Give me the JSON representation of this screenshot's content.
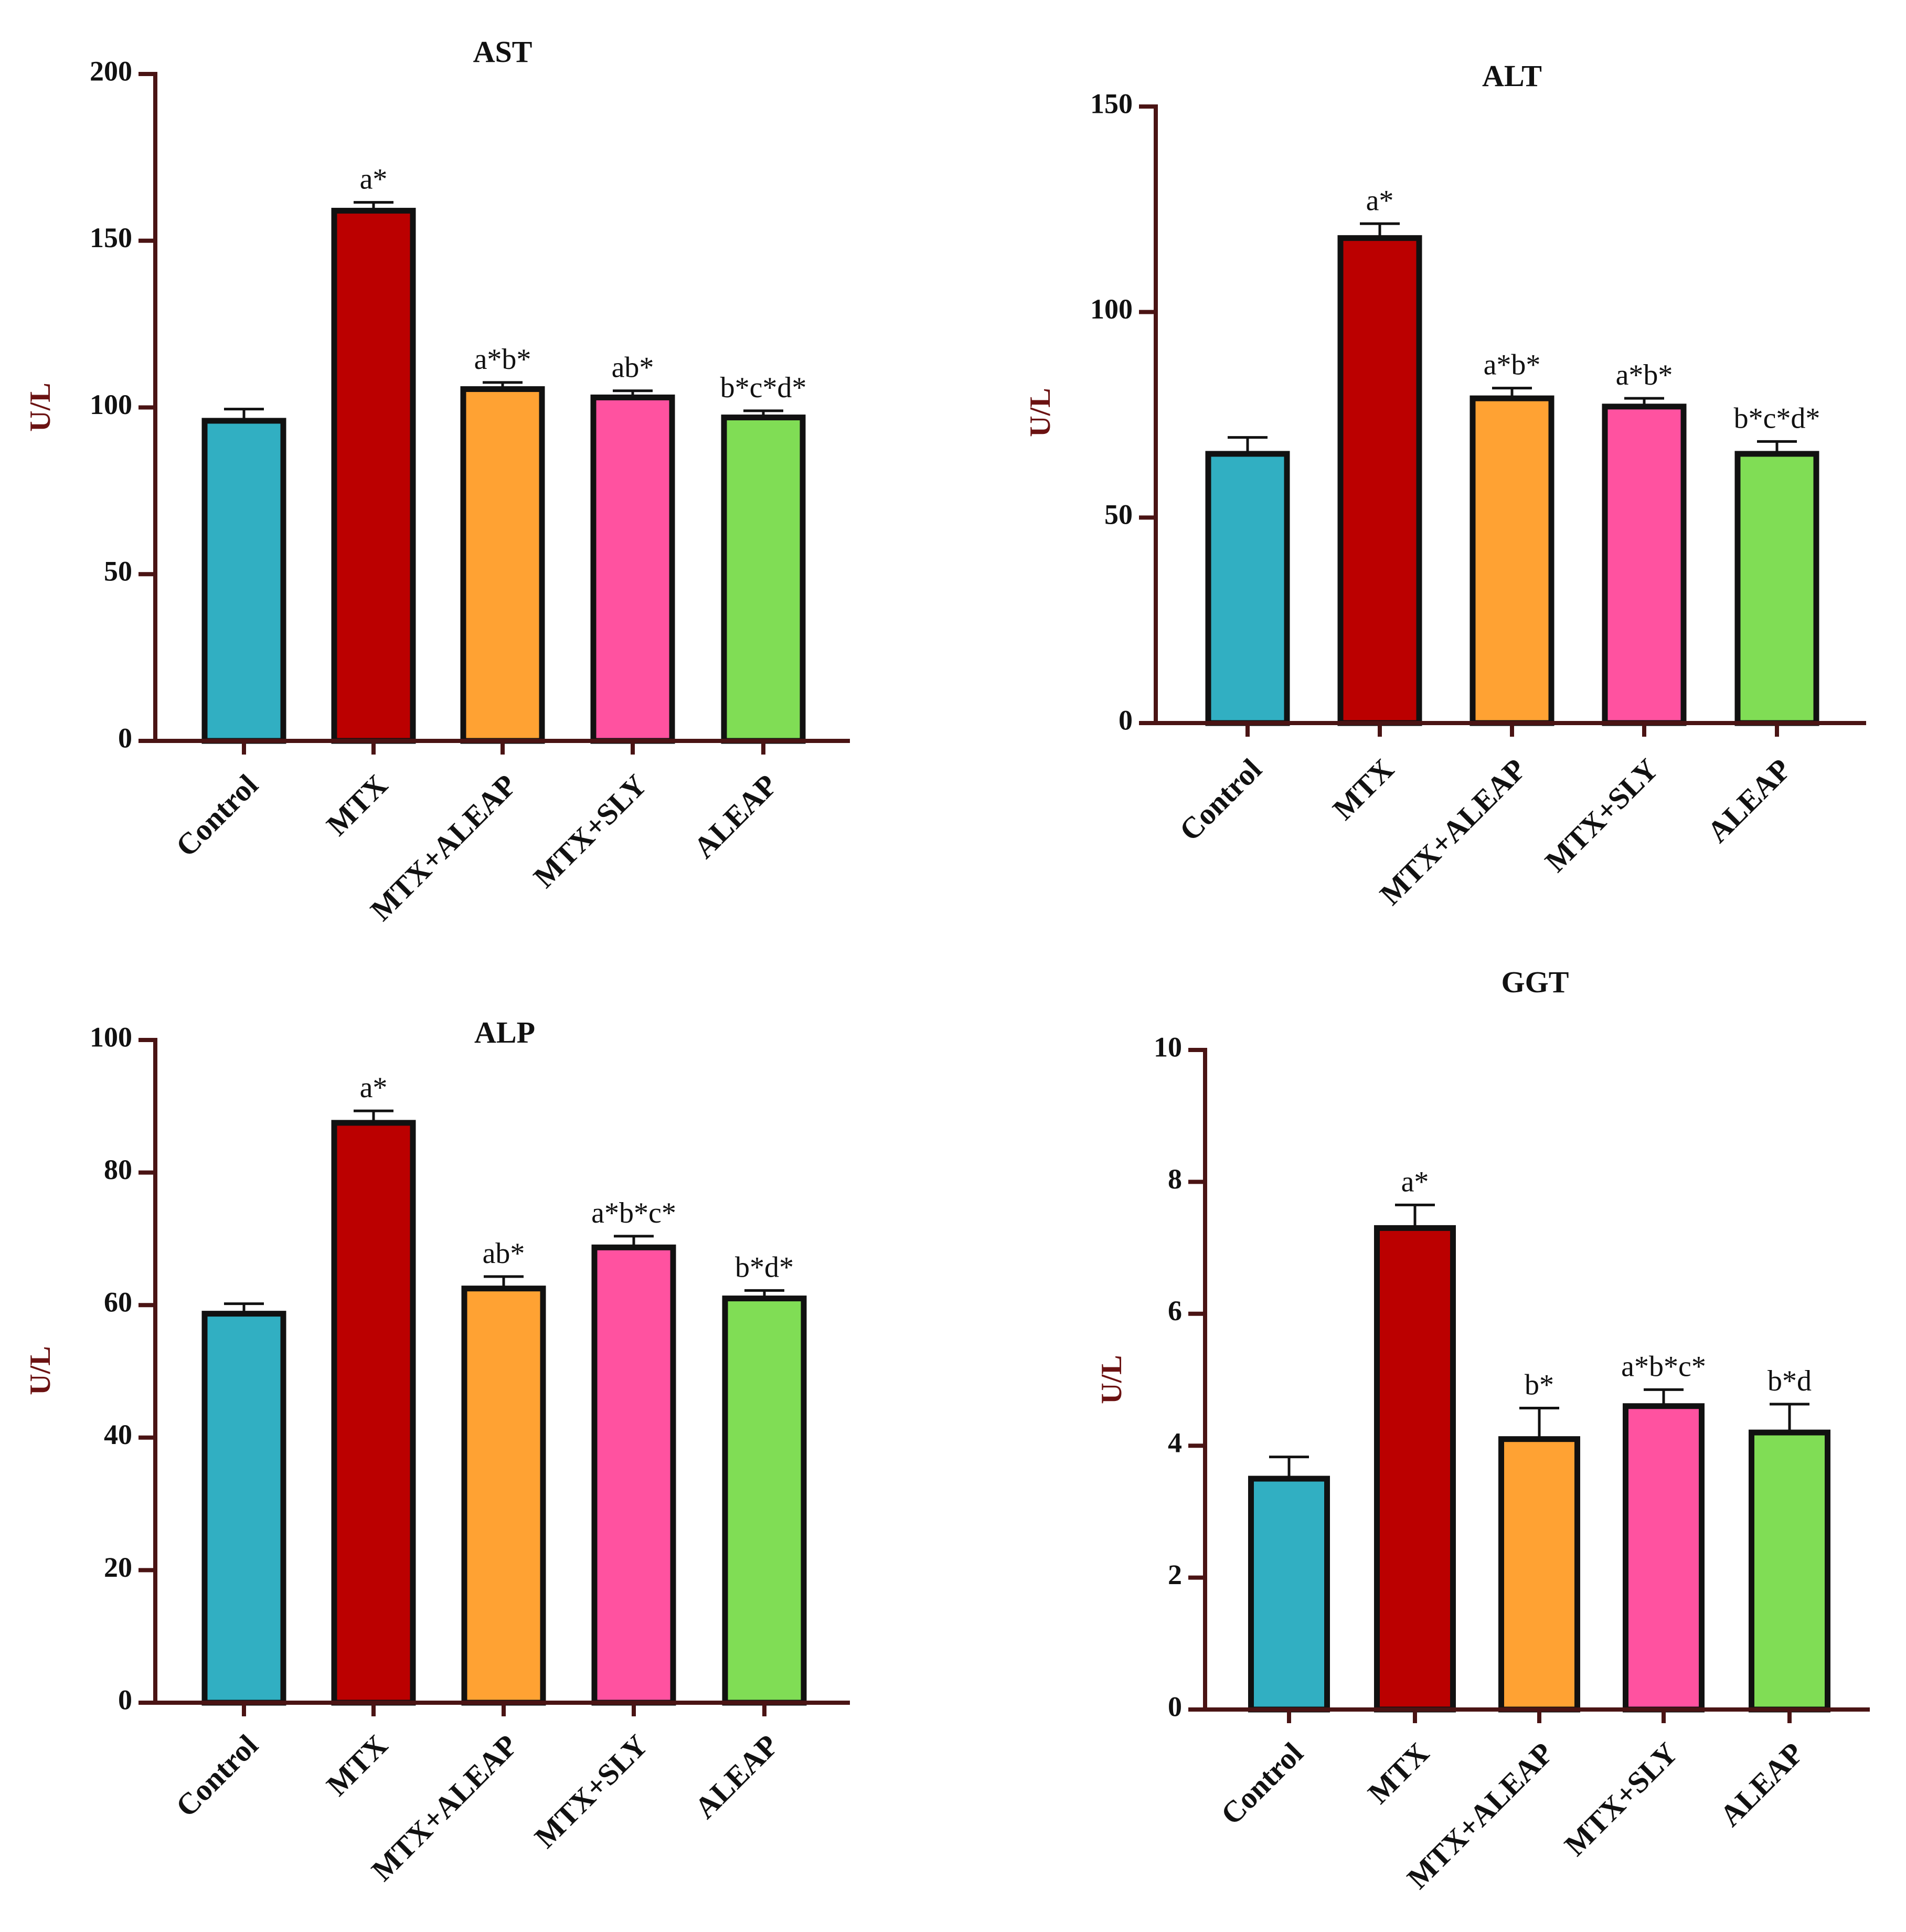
{
  "chart_data": [
    {
      "type": "bar",
      "title": "AST",
      "ylabel": "U/L",
      "xlabel": "",
      "ylim": [
        0,
        200
      ],
      "yticks": [
        0,
        50,
        100,
        150,
        200
      ],
      "categories": [
        "Control",
        "MTX",
        "MTX+ALEAP",
        "MTX+SLY",
        "ALEAP"
      ],
      "values": [
        96,
        159,
        105.5,
        103,
        97
      ],
      "errors": [
        3.5,
        2.5,
        2,
        2,
        2
      ],
      "annotations": [
        "",
        "a*",
        "a*b*",
        "ab*",
        "b*c*d*"
      ],
      "colors": [
        "#31afc2",
        "#bb0000",
        "#ffa233",
        "#ff52a0",
        "#80dd55"
      ]
    },
    {
      "type": "bar",
      "title": "ALT",
      "ylabel": "U/L",
      "xlabel": "",
      "ylim": [
        0,
        150
      ],
      "yticks": [
        0,
        50,
        100,
        150
      ],
      "categories": [
        "Control",
        "MTX",
        "MTX+ALEAP",
        "MTX+SLY",
        "ALEAP"
      ],
      "values": [
        65.5,
        118,
        79,
        77,
        65.5
      ],
      "errors": [
        4,
        3.5,
        2.5,
        2,
        3
      ],
      "annotations": [
        "",
        "a*",
        "a*b*",
        "a*b*",
        "b*c*d*"
      ],
      "colors": [
        "#31afc2",
        "#bb0000",
        "#ffa233",
        "#ff52a0",
        "#80dd55"
      ]
    },
    {
      "type": "bar",
      "title": "ALP",
      "ylabel": "U/L",
      "xlabel": "",
      "ylim": [
        0,
        100
      ],
      "yticks": [
        0,
        20,
        40,
        60,
        80,
        100
      ],
      "categories": [
        "Control",
        "MTX",
        "MTX+ALEAP",
        "MTX+SLY",
        "ALEAP"
      ],
      "values": [
        58.7,
        87.5,
        62.5,
        68.7,
        61
      ],
      "errors": [
        1.5,
        1.8,
        1.8,
        1.7,
        1.2
      ],
      "annotations": [
        "",
        "a*",
        "ab*",
        "a*b*c*",
        "b*d*"
      ],
      "colors": [
        "#31afc2",
        "#bb0000",
        "#ffa233",
        "#ff52a0",
        "#80dd55"
      ]
    },
    {
      "type": "bar",
      "title": "GGT",
      "ylabel": "U/L",
      "xlabel": "",
      "ylim": [
        0,
        10
      ],
      "yticks": [
        0,
        2,
        4,
        6,
        8,
        10
      ],
      "categories": [
        "Control",
        "MTX",
        "MTX+ALEAP",
        "MTX+SLY",
        "ALEAP"
      ],
      "values": [
        3.5,
        7.3,
        4.1,
        4.6,
        4.2
      ],
      "errors": [
        0.33,
        0.35,
        0.47,
        0.25,
        0.43
      ],
      "annotations": [
        "",
        "a*",
        "b*",
        "a*b*c*",
        "b*d"
      ],
      "colors": [
        "#31afc2",
        "#bb0000",
        "#ffa233",
        "#ff52a0",
        "#80dd55"
      ]
    }
  ]
}
